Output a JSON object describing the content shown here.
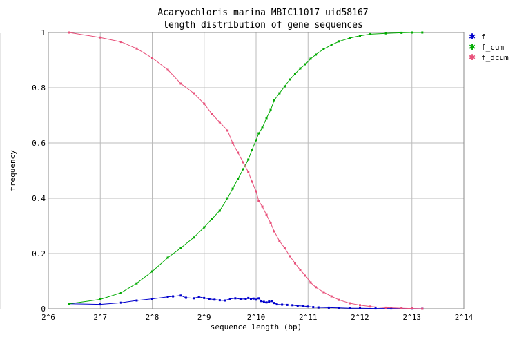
{
  "chart_data": {
    "type": "line",
    "title_line1": "Acaryochloris marina MBIC11017 uid58167",
    "title_line2": "length distribution of gene sequences",
    "xlabel": "sequence length (bp)",
    "ylabel": "frequency",
    "x_scale": "log2",
    "xlim_log2": [
      6,
      14
    ],
    "ylim": [
      0,
      1
    ],
    "x_ticks": [
      "2^6",
      "2^7",
      "2^8",
      "2^9",
      "2^10",
      "2^11",
      "2^12",
      "2^13",
      "2^14"
    ],
    "y_ticks": [
      "0",
      "0.2",
      "0.4",
      "0.6",
      "0.8",
      "1"
    ],
    "grid": true,
    "legend_position": "right",
    "series": [
      {
        "name": "f",
        "color": "#0000cc",
        "points_log2x": [
          [
            6.4,
            0.018
          ],
          [
            7.0,
            0.016
          ],
          [
            7.4,
            0.022
          ],
          [
            7.7,
            0.03
          ],
          [
            8.0,
            0.036
          ],
          [
            8.3,
            0.043
          ],
          [
            8.4,
            0.045
          ],
          [
            8.55,
            0.048
          ],
          [
            8.65,
            0.04
          ],
          [
            8.8,
            0.038
          ],
          [
            8.9,
            0.043
          ],
          [
            9.0,
            0.039
          ],
          [
            9.1,
            0.036
          ],
          [
            9.2,
            0.033
          ],
          [
            9.3,
            0.031
          ],
          [
            9.4,
            0.03
          ],
          [
            9.5,
            0.036
          ],
          [
            9.6,
            0.038
          ],
          [
            9.7,
            0.035
          ],
          [
            9.8,
            0.036
          ],
          [
            9.85,
            0.039
          ],
          [
            9.9,
            0.036
          ],
          [
            9.95,
            0.037
          ],
          [
            10.0,
            0.033
          ],
          [
            10.05,
            0.038
          ],
          [
            10.1,
            0.028
          ],
          [
            10.15,
            0.025
          ],
          [
            10.2,
            0.023
          ],
          [
            10.25,
            0.026
          ],
          [
            10.3,
            0.028
          ],
          [
            10.35,
            0.021
          ],
          [
            10.4,
            0.016
          ],
          [
            10.5,
            0.015
          ],
          [
            10.6,
            0.014
          ],
          [
            10.7,
            0.013
          ],
          [
            10.8,
            0.011
          ],
          [
            10.9,
            0.01
          ],
          [
            11.0,
            0.008
          ],
          [
            11.1,
            0.006
          ],
          [
            11.2,
            0.005
          ],
          [
            11.4,
            0.004
          ],
          [
            11.6,
            0.003
          ],
          [
            11.8,
            0.002
          ],
          [
            12.0,
            0.002
          ],
          [
            12.3,
            0.001
          ],
          [
            12.6,
            0.001
          ],
          [
            13.0,
            0.0005
          ],
          [
            13.2,
            0.0003
          ]
        ]
      },
      {
        "name": "f_cum",
        "color": "#00aa00",
        "points_log2x": [
          [
            6.4,
            0.018
          ],
          [
            7.0,
            0.034
          ],
          [
            7.4,
            0.058
          ],
          [
            7.7,
            0.092
          ],
          [
            8.0,
            0.135
          ],
          [
            8.3,
            0.185
          ],
          [
            8.55,
            0.22
          ],
          [
            8.8,
            0.258
          ],
          [
            9.0,
            0.295
          ],
          [
            9.15,
            0.325
          ],
          [
            9.3,
            0.355
          ],
          [
            9.45,
            0.4
          ],
          [
            9.55,
            0.435
          ],
          [
            9.65,
            0.47
          ],
          [
            9.75,
            0.505
          ],
          [
            9.85,
            0.54
          ],
          [
            9.92,
            0.575
          ],
          [
            10.0,
            0.61
          ],
          [
            10.05,
            0.635
          ],
          [
            10.12,
            0.655
          ],
          [
            10.2,
            0.69
          ],
          [
            10.28,
            0.72
          ],
          [
            10.35,
            0.755
          ],
          [
            10.45,
            0.78
          ],
          [
            10.55,
            0.805
          ],
          [
            10.65,
            0.83
          ],
          [
            10.75,
            0.85
          ],
          [
            10.85,
            0.87
          ],
          [
            10.95,
            0.885
          ],
          [
            11.05,
            0.905
          ],
          [
            11.15,
            0.92
          ],
          [
            11.3,
            0.94
          ],
          [
            11.45,
            0.955
          ],
          [
            11.6,
            0.968
          ],
          [
            11.8,
            0.98
          ],
          [
            12.0,
            0.988
          ],
          [
            12.2,
            0.994
          ],
          [
            12.5,
            0.997
          ],
          [
            12.8,
            0.999
          ],
          [
            13.0,
            1.0
          ],
          [
            13.2,
            1.0
          ]
        ]
      },
      {
        "name": "f_dcum",
        "color": "#e8507a",
        "points_log2x": [
          [
            6.4,
            1.0
          ],
          [
            7.0,
            0.982
          ],
          [
            7.4,
            0.966
          ],
          [
            7.7,
            0.942
          ],
          [
            8.0,
            0.908
          ],
          [
            8.3,
            0.865
          ],
          [
            8.55,
            0.815
          ],
          [
            8.8,
            0.78
          ],
          [
            9.0,
            0.742
          ],
          [
            9.15,
            0.705
          ],
          [
            9.3,
            0.675
          ],
          [
            9.45,
            0.645
          ],
          [
            9.55,
            0.6
          ],
          [
            9.65,
            0.565
          ],
          [
            9.75,
            0.53
          ],
          [
            9.85,
            0.495
          ],
          [
            9.92,
            0.46
          ],
          [
            10.0,
            0.425
          ],
          [
            10.05,
            0.39
          ],
          [
            10.12,
            0.37
          ],
          [
            10.2,
            0.34
          ],
          [
            10.28,
            0.31
          ],
          [
            10.35,
            0.28
          ],
          [
            10.45,
            0.245
          ],
          [
            10.55,
            0.22
          ],
          [
            10.65,
            0.19
          ],
          [
            10.75,
            0.165
          ],
          [
            10.85,
            0.14
          ],
          [
            10.95,
            0.12
          ],
          [
            11.05,
            0.095
          ],
          [
            11.15,
            0.078
          ],
          [
            11.3,
            0.06
          ],
          [
            11.45,
            0.045
          ],
          [
            11.6,
            0.032
          ],
          [
            11.8,
            0.02
          ],
          [
            12.0,
            0.013
          ],
          [
            12.2,
            0.008
          ],
          [
            12.5,
            0.004
          ],
          [
            12.8,
            0.002
          ],
          [
            13.0,
            0.001
          ],
          [
            13.2,
            0.0
          ]
        ]
      }
    ]
  }
}
